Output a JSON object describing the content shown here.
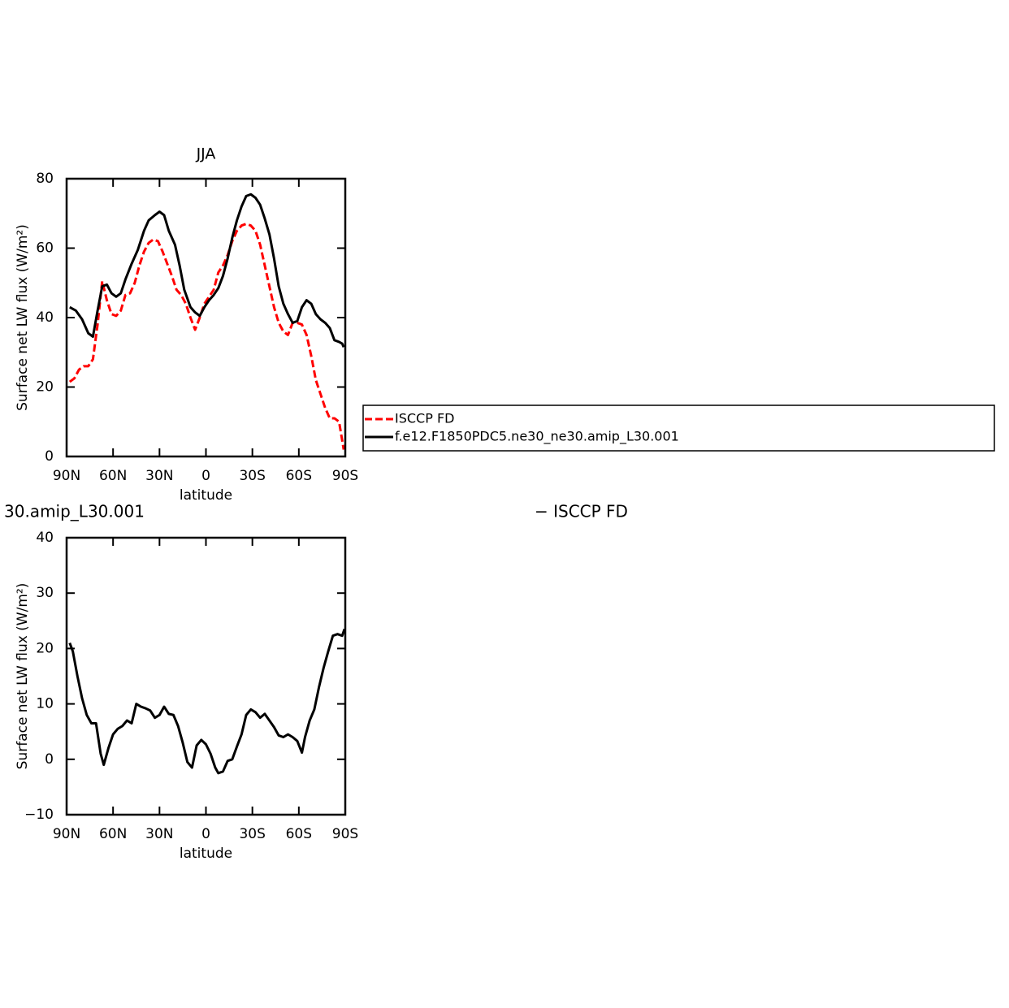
{
  "chart_data": [
    {
      "type": "line",
      "title": "JJA",
      "ylabel": "Surface net LW flux (W/m²)",
      "xlabel": "latitude",
      "xlim": [
        90,
        -90
      ],
      "xticks": [
        {
          "value": 90,
          "label": "90N"
        },
        {
          "value": 60,
          "label": "60N"
        },
        {
          "value": 30,
          "label": "30N"
        },
        0,
        {
          "value": -30,
          "label": "30S"
        },
        {
          "value": -60,
          "label": "60S"
        },
        {
          "value": -90,
          "label": "90S"
        }
      ],
      "ylim": [
        0,
        80
      ],
      "yticks": [
        0,
        20,
        40,
        60,
        80
      ],
      "series": [
        {
          "name": "ISCCP FD",
          "color": "#ff0000",
          "dashed": true,
          "x": [
            88,
            85,
            82,
            79,
            76,
            73,
            70,
            67,
            64,
            61,
            58,
            55,
            52,
            49,
            46,
            43,
            40,
            37,
            34,
            31,
            28,
            25,
            22,
            19,
            16,
            13,
            10,
            7,
            4,
            1,
            -2,
            -5,
            -8,
            -11,
            -14,
            -17,
            -20,
            -23,
            -26,
            -29,
            -32,
            -35,
            -38,
            -41,
            -44,
            -47,
            -50,
            -53,
            -56,
            -59,
            -62,
            -65,
            -68,
            -71,
            -74,
            -77,
            -80,
            -83,
            -86,
            -89
          ],
          "values": [
            21.5,
            22.5,
            25,
            26,
            26,
            28,
            38,
            50.5,
            45,
            41,
            40.5,
            42,
            46.5,
            47,
            50,
            55,
            59,
            61.5,
            62.5,
            62,
            59,
            55.5,
            52,
            48,
            46.5,
            44,
            40,
            36.5,
            40,
            44,
            46,
            48,
            53,
            55,
            58,
            62,
            65,
            66.5,
            67,
            66.5,
            65,
            61,
            55,
            49,
            43,
            38.5,
            36,
            35,
            38.5,
            38.5,
            38,
            35,
            29,
            22,
            18,
            14,
            11,
            11,
            10,
            2
          ]
        },
        {
          "name": "f.e12.F1850PDC5.ne30_ne30.amip_L30.001",
          "color": "#000000",
          "dashed": false,
          "x": [
            88,
            84,
            80,
            76,
            73,
            70,
            67,
            64,
            61,
            58,
            55,
            52,
            48,
            44,
            40,
            37,
            33,
            30,
            27,
            24,
            20,
            17,
            14,
            10,
            7,
            4,
            1,
            -2,
            -5,
            -8,
            -11,
            -14,
            -17,
            -20,
            -23,
            -26,
            -29,
            -32,
            -35,
            -38,
            -41,
            -44,
            -47,
            -50,
            -53,
            -56,
            -59,
            -62,
            -65,
            -68,
            -71,
            -74,
            -77,
            -80,
            -83,
            -86,
            -88,
            -89
          ],
          "values": [
            43,
            42,
            39.5,
            35.5,
            34.5,
            42,
            49,
            49.5,
            47,
            46,
            47,
            51,
            55.5,
            59.5,
            65,
            68,
            69.5,
            70.5,
            69.5,
            65,
            61,
            55,
            48,
            43,
            41.5,
            40.5,
            43,
            45,
            46.5,
            48.5,
            52,
            57,
            63,
            68,
            72,
            75,
            75.5,
            74.5,
            72.5,
            68.5,
            64,
            57,
            49,
            44,
            41,
            38.5,
            39,
            43,
            45,
            44,
            41,
            39.5,
            38.5,
            37,
            33.5,
            33,
            32.5,
            31.5
          ]
        }
      ]
    },
    {
      "type": "line",
      "title_left": "30.amip_L30.001",
      "title_right": "− ISCCP FD",
      "ylabel": "Surface net LW flux (W/m²)",
      "xlabel": "latitude",
      "xlim": [
        90,
        -90
      ],
      "xticks": [
        {
          "value": 90,
          "label": "90N"
        },
        {
          "value": 60,
          "label": "60N"
        },
        {
          "value": 30,
          "label": "30N"
        },
        0,
        {
          "value": -30,
          "label": "30S"
        },
        {
          "value": -60,
          "label": "60S"
        },
        {
          "value": -90,
          "label": "90S"
        }
      ],
      "ylim": [
        -10,
        40
      ],
      "yticks": [
        {
          "value": -10,
          "label": "−10"
        },
        0,
        10,
        20,
        30,
        40
      ],
      "series": [
        {
          "color": "#000000",
          "dashed": false,
          "x": [
            88,
            86,
            83,
            80,
            77,
            74,
            71,
            68,
            66,
            63,
            60,
            57,
            54,
            51,
            48,
            45,
            42,
            39,
            36,
            33,
            30,
            27,
            24,
            21,
            18,
            15,
            12,
            9,
            6,
            3,
            0,
            -3,
            -6,
            -8,
            -11,
            -14,
            -17,
            -20,
            -23,
            -26,
            -29,
            -32,
            -35,
            -38,
            -41,
            -44,
            -47,
            -50,
            -53,
            -56,
            -59,
            -62,
            -64,
            -67,
            -70,
            -73,
            -76,
            -79,
            -82,
            -85,
            -88,
            -89.5
          ],
          "values": [
            21,
            19.5,
            15,
            11,
            8,
            6.5,
            6.5,
            1,
            -1,
            2,
            4.5,
            5.5,
            6,
            7,
            6.5,
            10,
            9.5,
            9.2,
            8.8,
            7.5,
            8,
            9.5,
            8.2,
            8,
            6,
            3,
            -0.5,
            -1.5,
            2.5,
            3.5,
            2.7,
            1,
            -1.5,
            -2.5,
            -2.2,
            -0.3,
            0,
            2.3,
            4.5,
            8,
            9,
            8.5,
            7.5,
            8.2,
            7,
            5.8,
            4.3,
            4,
            4.5,
            4,
            3.3,
            1.2,
            4,
            7,
            9,
            13,
            16.5,
            19.5,
            22.3,
            22.6,
            22.3,
            23.5
          ]
        }
      ]
    }
  ]
}
